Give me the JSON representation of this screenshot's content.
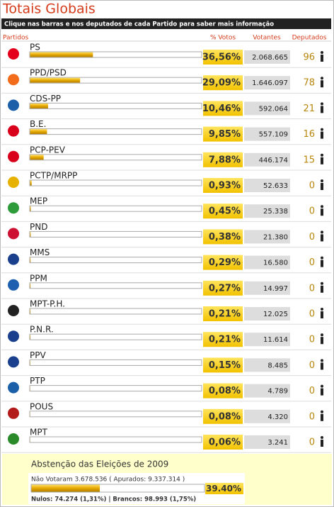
{
  "header": {
    "title": "Totais Globais",
    "subtitle": "Clique nas barras e nos deputados de cada Partido para saber mais informação"
  },
  "table": {
    "columns": {
      "party": "Partidos",
      "pct": "% Votos",
      "votes": "Votantes",
      "deputies": "Deputados"
    },
    "rows": [
      {
        "party": "PS",
        "pct": {
          "value": 36.56,
          "label": "36,56%"
        },
        "votes": "2.068.665",
        "deputies": 96
      },
      {
        "party": "PPD/PSD",
        "pct": {
          "value": 29.09,
          "label": "29,09%"
        },
        "votes": "1.646.097",
        "deputies": 78
      },
      {
        "party": "CDS-PP",
        "pct": {
          "value": 10.46,
          "label": "10,46%"
        },
        "votes": "592.064",
        "deputies": 21
      },
      {
        "party": "B.E.",
        "pct": {
          "value": 9.85,
          "label": "9,85%"
        },
        "votes": "557.109",
        "deputies": 16
      },
      {
        "party": "PCP-PEV",
        "pct": {
          "value": 7.88,
          "label": "7,88%"
        },
        "votes": "446.174",
        "deputies": 15
      },
      {
        "party": "PCTP/MRPP",
        "pct": {
          "value": 0.93,
          "label": "0,93%"
        },
        "votes": "52.633",
        "deputies": 0
      },
      {
        "party": "MEP",
        "pct": {
          "value": 0.45,
          "label": "0,45%"
        },
        "votes": "25.338",
        "deputies": 0
      },
      {
        "party": "PND",
        "pct": {
          "value": 0.38,
          "label": "0,38%"
        },
        "votes": "21.380",
        "deputies": 0
      },
      {
        "party": "MMS",
        "pct": {
          "value": 0.29,
          "label": "0,29%"
        },
        "votes": "16.580",
        "deputies": 0
      },
      {
        "party": "PPM",
        "pct": {
          "value": 0.27,
          "label": "0,27%"
        },
        "votes": "14.997",
        "deputies": 0
      },
      {
        "party": "MPT-P.H.",
        "pct": {
          "value": 0.21,
          "label": "0,21%"
        },
        "votes": "12.025",
        "deputies": 0
      },
      {
        "party": "P.N.R.",
        "pct": {
          "value": 0.21,
          "label": "0,21%"
        },
        "votes": "11.614",
        "deputies": 0
      },
      {
        "party": "PPV",
        "pct": {
          "value": 0.15,
          "label": "0,15%"
        },
        "votes": "8.485",
        "deputies": 0
      },
      {
        "party": "PTP",
        "pct": {
          "value": 0.08,
          "label": "0,08%"
        },
        "votes": "4.789",
        "deputies": 0
      },
      {
        "party": "POUS",
        "pct": {
          "value": 0.08,
          "label": "0,08%"
        },
        "votes": "4.320",
        "deputies": 0
      },
      {
        "party": "MPT",
        "pct": {
          "value": 0.06,
          "label": "0,06%"
        },
        "votes": "3.241",
        "deputies": 0
      }
    ]
  },
  "abstention": {
    "title": "Abstenção das Eleições de 2009",
    "not_voted": "Não Votaram 3.678.536 ( Apurados: 9.337.314 )",
    "pct": {
      "value": 39.4,
      "label": "39.40%"
    },
    "null_blank": "Nulos: 74.274 (1,31%) | Brancos: 98.993 (1,75%)"
  }
}
